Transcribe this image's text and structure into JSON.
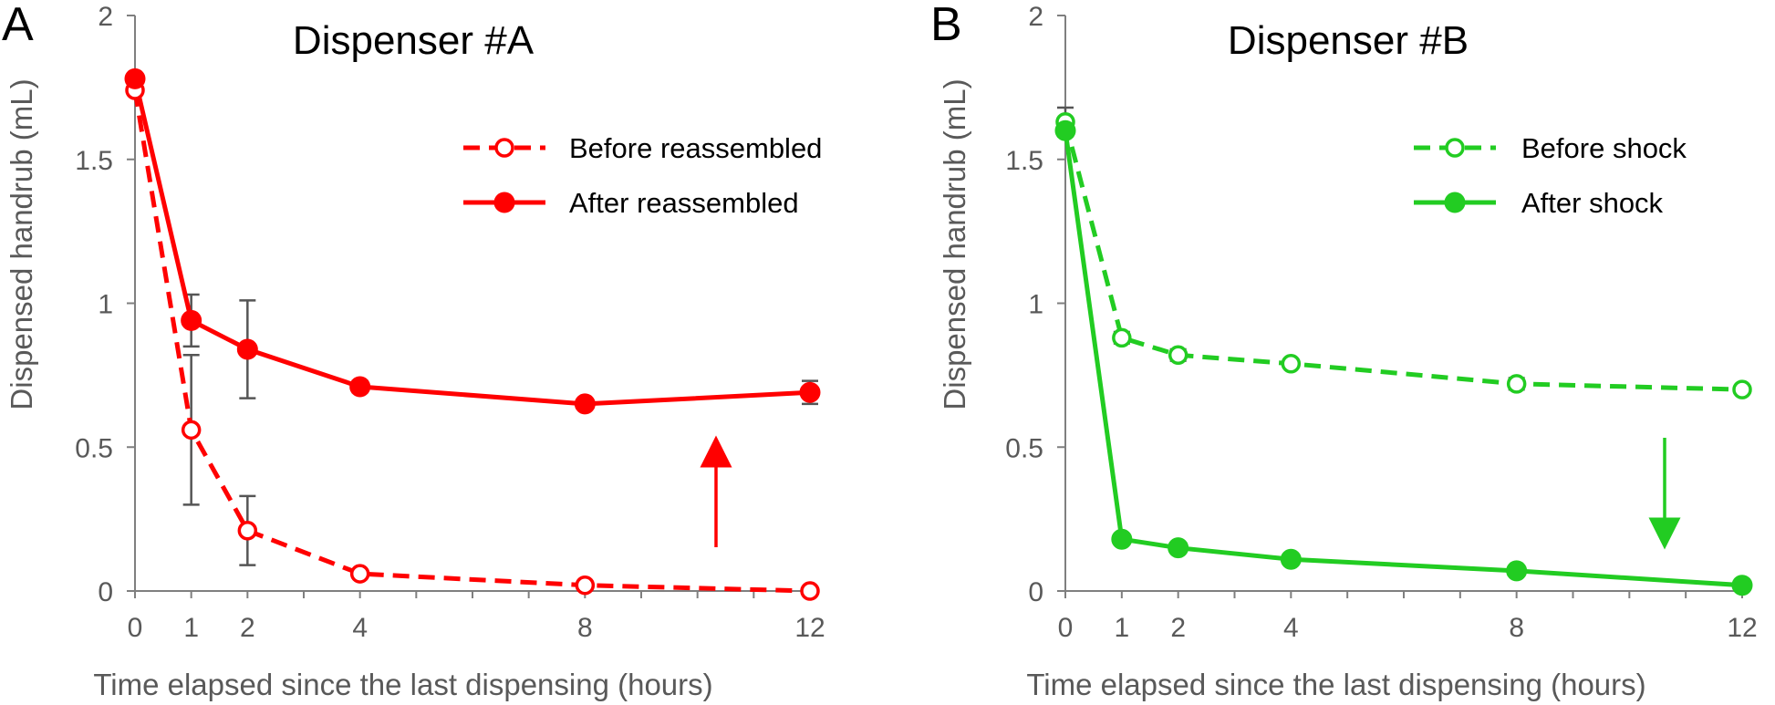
{
  "chart_data": [
    {
      "type": "line",
      "panel_label": "A",
      "title": "Dispenser #A",
      "xlabel": "Time elapsed since the last dispensing (hours)",
      "ylabel": "Dispensed handrub (mL)",
      "x_ticks": [
        "0",
        "1",
        "2",
        "4",
        "8",
        "12"
      ],
      "y_ticks": [
        "0",
        "0.5",
        "1",
        "1.5",
        "2"
      ],
      "xlim": [
        0,
        12
      ],
      "ylim": [
        0,
        2
      ],
      "color": "#ff0000",
      "legend_position": "top-right",
      "annotation": "upward arrow (increase)",
      "series": [
        {
          "name": "Before reassembled",
          "style": "dashed-open",
          "x": [
            0,
            1,
            2,
            4,
            8,
            12
          ],
          "values": [
            1.74,
            0.56,
            0.21,
            0.06,
            0.02,
            0.0
          ],
          "errors": [
            0.0,
            0.26,
            0.12,
            0.0,
            0.0,
            0.0
          ]
        },
        {
          "name": "After reassembled",
          "style": "solid-filled",
          "x": [
            0,
            1,
            2,
            4,
            8,
            12
          ],
          "values": [
            1.78,
            0.94,
            0.84,
            0.71,
            0.65,
            0.69
          ],
          "errors": [
            0.0,
            0.09,
            0.17,
            0.02,
            0.0,
            0.04
          ]
        }
      ]
    },
    {
      "type": "line",
      "panel_label": "B",
      "title": "Dispenser #B",
      "xlabel": "Time elapsed since the last dispensing (hours)",
      "ylabel": "Dispensed handrub (mL)",
      "x_ticks": [
        "0",
        "1",
        "2",
        "4",
        "8",
        "12"
      ],
      "y_ticks": [
        "0",
        "0.5",
        "1",
        "1.5",
        "2"
      ],
      "xlim": [
        0,
        12
      ],
      "ylim": [
        0,
        2
      ],
      "color": "#22cc22",
      "legend_position": "top-right",
      "annotation": "downward arrow (decrease)",
      "series": [
        {
          "name": "Before shock",
          "style": "dashed-open",
          "x": [
            0,
            1,
            2,
            4,
            8,
            12
          ],
          "values": [
            1.63,
            0.88,
            0.82,
            0.79,
            0.72,
            0.7
          ],
          "errors": [
            0.05,
            0.02,
            0.02,
            0.01,
            0.02,
            0.0
          ]
        },
        {
          "name": "After shock",
          "style": "solid-filled",
          "x": [
            0,
            1,
            2,
            4,
            8,
            12
          ],
          "values": [
            1.6,
            0.18,
            0.15,
            0.11,
            0.07,
            0.02
          ],
          "errors": [
            0.0,
            0.0,
            0.0,
            0.0,
            0.0,
            0.0
          ]
        }
      ]
    }
  ]
}
